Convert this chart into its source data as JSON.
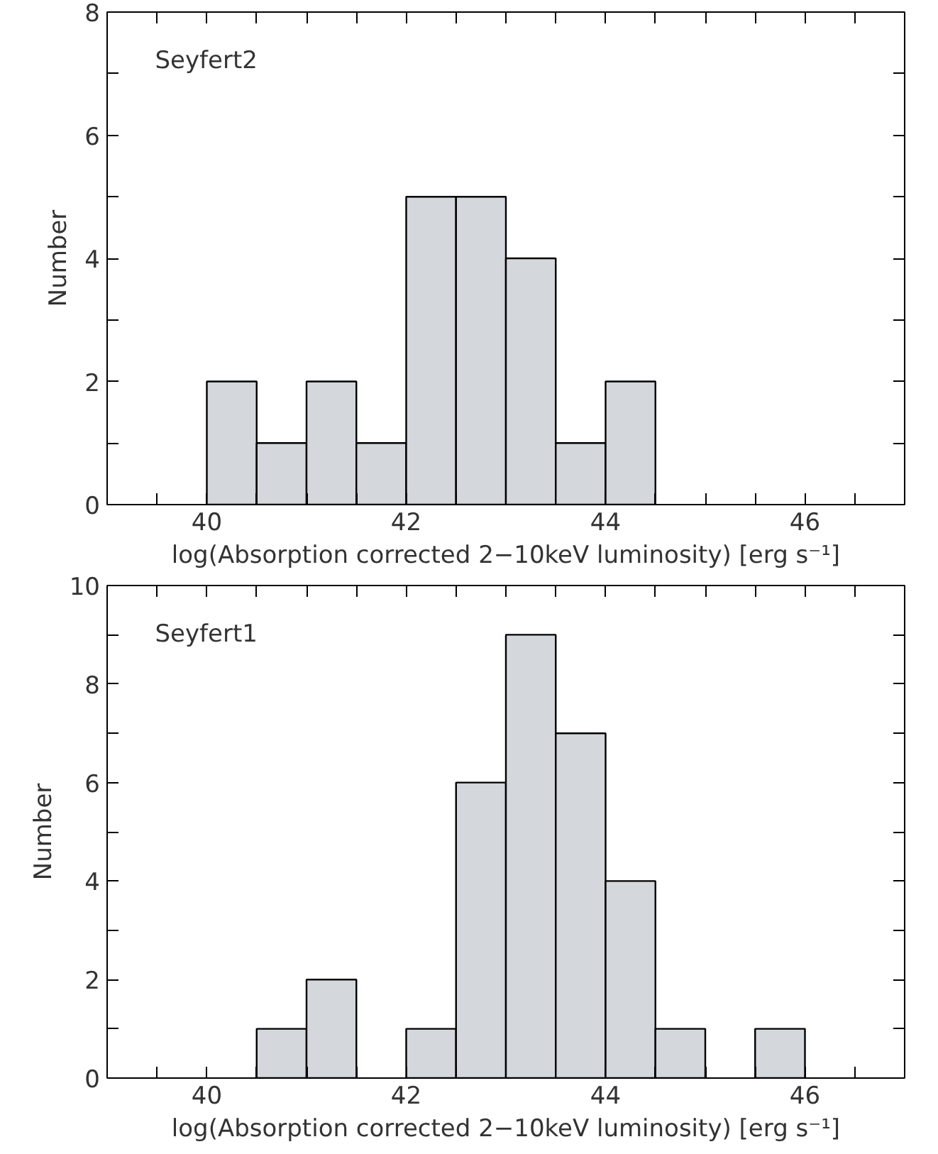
{
  "chart_data": [
    {
      "type": "histogram",
      "xlabel": "log(Absorption corrected 2−10keV luminosity) [erg s⁻¹]",
      "ylabel": "Number",
      "annotations": [
        "Seyfert2"
      ],
      "color": "#d4d7dc",
      "bins": [
        40,
        40.5,
        41,
        41.5,
        42,
        42.5,
        43,
        43.5,
        44,
        44.5
      ],
      "values": [
        2,
        1,
        2,
        1,
        5,
        5,
        4,
        1,
        2
      ],
      "xlim": [
        39,
        47
      ],
      "xticks": [
        {
          "value": 39.5,
          "label": null
        },
        40,
        {
          "value": 40.5,
          "label": null
        },
        {
          "value": 41,
          "label": null
        },
        {
          "value": 41.5,
          "label": null
        },
        42,
        {
          "value": 42.5,
          "label": null
        },
        {
          "value": 43,
          "label": null
        },
        {
          "value": 43.5,
          "label": null
        },
        44,
        {
          "value": 44.5,
          "label": null
        },
        {
          "value": 45,
          "label": null
        },
        {
          "value": 45.5,
          "label": null
        },
        46,
        {
          "value": 46.5,
          "label": null
        }
      ],
      "ylim": [
        0,
        8
      ],
      "yticks": [
        0,
        {
          "value": 1,
          "label": null
        },
        2,
        {
          "value": 3,
          "label": null
        },
        4,
        {
          "value": 5,
          "label": null
        },
        6,
        {
          "value": 7,
          "label": null
        },
        8
      ]
    },
    {
      "type": "histogram",
      "xlabel": "log(Absorption corrected 2−10keV luminosity) [erg s⁻¹]",
      "ylabel": "Number",
      "annotations": [
        "Seyfert1"
      ],
      "color": "#d4d7dc",
      "bins": [
        40.5,
        41,
        41.5,
        42,
        42.5,
        43,
        43.5,
        44,
        44.5,
        45,
        45.5,
        46
      ],
      "values": [
        1,
        2,
        0,
        1,
        6,
        9,
        7,
        4,
        1,
        0,
        1
      ],
      "xlim": [
        39,
        47
      ],
      "xticks": [
        {
          "value": 39.5,
          "label": null
        },
        40,
        {
          "value": 40.5,
          "label": null
        },
        {
          "value": 41,
          "label": null
        },
        {
          "value": 41.5,
          "label": null
        },
        42,
        {
          "value": 42.5,
          "label": null
        },
        {
          "value": 43,
          "label": null
        },
        {
          "value": 43.5,
          "label": null
        },
        44,
        {
          "value": 44.5,
          "label": null
        },
        {
          "value": 45,
          "label": null
        },
        {
          "value": 45.5,
          "label": null
        },
        46,
        {
          "value": 46.5,
          "label": null
        }
      ],
      "ylim": [
        0,
        10
      ],
      "yticks": [
        0,
        {
          "value": 1,
          "label": null
        },
        2,
        {
          "value": 3,
          "label": null
        },
        4,
        {
          "value": 5,
          "label": null
        },
        6,
        {
          "value": 7,
          "label": null
        },
        8,
        {
          "value": 9,
          "label": null
        },
        10
      ]
    }
  ]
}
